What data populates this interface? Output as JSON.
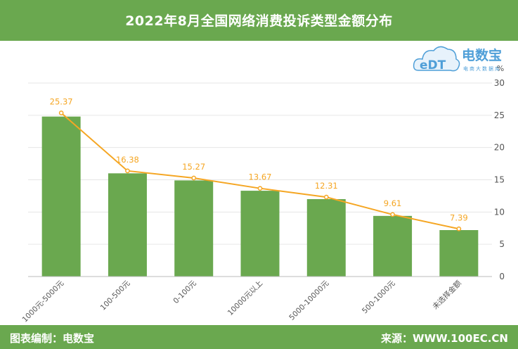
{
  "header": {
    "title": "2022年8月全国网络消费投诉类型金额分布"
  },
  "footer": {
    "credit": "图表编制：电数宝",
    "source": "来源：WWW.100EC.CN"
  },
  "logo": {
    "brand": "电数宝",
    "mark": "eDT",
    "slogan": "电商大数据库"
  },
  "colors": {
    "bar": "#6aa84f",
    "line": "#f5a623",
    "banner": "#6aa84f",
    "logo": "#4f9fd8"
  },
  "chart_data": {
    "type": "bar",
    "categories": [
      "1000元-5000元",
      "100-500元",
      "0-100元",
      "10000元以上",
      "5000-10000元",
      "500-1000元",
      "未选择金额"
    ],
    "series": [
      {
        "type": "bar",
        "values": [
          24.8,
          16.0,
          14.9,
          13.3,
          12.0,
          9.4,
          7.2
        ]
      },
      {
        "type": "line",
        "values": [
          25.37,
          16.38,
          15.27,
          13.67,
          12.31,
          9.61,
          7.39
        ]
      }
    ],
    "data_labels": [
      "25.37",
      "16.38",
      "15.27",
      "13.67",
      "12.31",
      "9.61",
      "7.39"
    ],
    "y_unit": "%",
    "ylim": [
      0,
      30
    ],
    "yticks": [
      "0",
      "5",
      "10",
      "15",
      "20",
      "25",
      "30"
    ],
    "grid": true,
    "legend": "none"
  }
}
